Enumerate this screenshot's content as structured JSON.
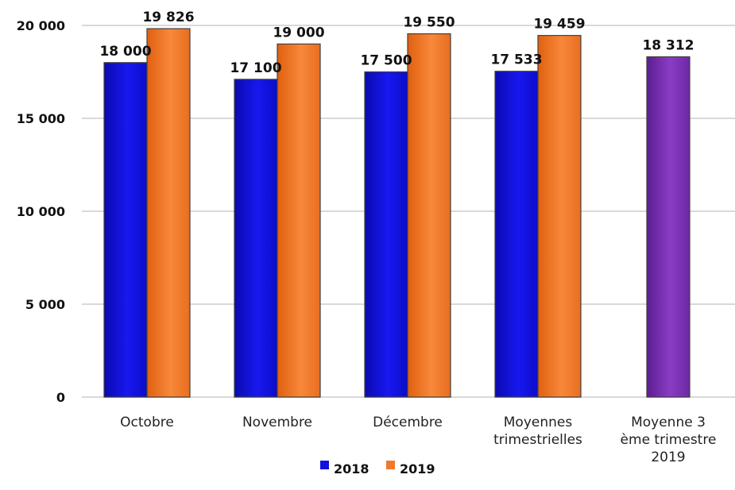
{
  "chart_data": {
    "type": "bar",
    "title": "",
    "xlabel": "",
    "ylabel": "",
    "ylim": [
      0,
      20000
    ],
    "yticks": [
      0,
      5000,
      10000,
      15000,
      20000
    ],
    "ytick_labels": [
      "0",
      "5 000",
      "10 000",
      "15 000",
      "20 000"
    ],
    "grid": true,
    "legend_position": "bottom",
    "categories": [
      [
        "Octobre"
      ],
      [
        "Novembre"
      ],
      [
        "Décembre"
      ],
      [
        "Moyennes",
        "trimestrielles"
      ],
      [
        "Moyenne 3",
        "ème trimestre",
        "2019"
      ]
    ],
    "series": [
      {
        "name": "2018",
        "color": "#1010e0",
        "values": [
          18000,
          17100,
          17500,
          17533,
          null
        ],
        "labels": [
          "18 000",
          "17 100",
          "17 500",
          "17 533",
          ""
        ]
      },
      {
        "name": "2019",
        "color": "#f07a2a",
        "values": [
          19826,
          19000,
          19550,
          19459,
          null
        ],
        "labels": [
          "19 826",
          "19 000",
          "19 550",
          "19 459",
          ""
        ]
      },
      {
        "name": "",
        "color": "#7a30b0",
        "values": [
          null,
          null,
          null,
          null,
          18312
        ],
        "labels": [
          "",
          "",
          "",
          "",
          "18 312"
        ]
      }
    ],
    "legend": [
      {
        "label": "2018",
        "color": "#1010e0"
      },
      {
        "label": "2019",
        "color": "#f07a2a"
      }
    ]
  }
}
